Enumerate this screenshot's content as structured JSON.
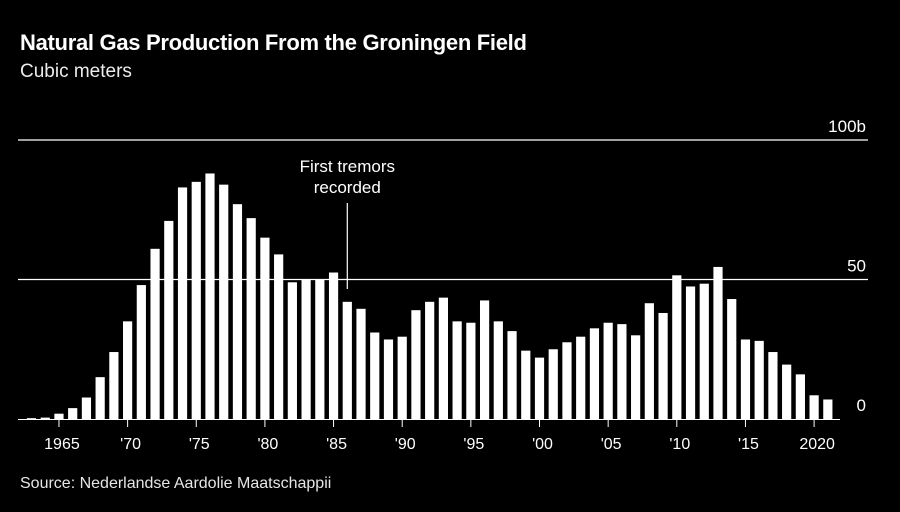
{
  "header": {
    "title": "Natural Gas Production From the Groningen Field",
    "subtitle": "Cubic meters"
  },
  "footer": {
    "source": "Source: Nederlandse Aardolie Maatschappii"
  },
  "colors": {
    "background": "#000000",
    "bars": "#ffffff",
    "gridlines": "#ffffff",
    "text": "#ffffff"
  },
  "chart_data": {
    "type": "bar",
    "title": "Natural Gas Production From the Groningen Field",
    "subtitle": "Cubic meters",
    "xlabel": "",
    "ylabel": "",
    "ylim": [
      0,
      100
    ],
    "grid": true,
    "legend": "none",
    "y_ticks": [
      {
        "value": 0,
        "label": "0"
      },
      {
        "value": 50,
        "label": "50"
      },
      {
        "value": 100,
        "label": "100b"
      }
    ],
    "x_ticks": [
      {
        "year": 1965,
        "label": "1965"
      },
      {
        "year": 1970,
        "label": "'70"
      },
      {
        "year": 1975,
        "label": "'75"
      },
      {
        "year": 1980,
        "label": "'80"
      },
      {
        "year": 1985,
        "label": "'85"
      },
      {
        "year": 1990,
        "label": "'90"
      },
      {
        "year": 1995,
        "label": "'95"
      },
      {
        "year": 2000,
        "label": "'00"
      },
      {
        "year": 2005,
        "label": "'05"
      },
      {
        "year": 2010,
        "label": "'10"
      },
      {
        "year": 2015,
        "label": "'15"
      },
      {
        "year": 2020,
        "label": "2020"
      }
    ],
    "annotation": {
      "year": 1986,
      "lines": [
        "First tremors",
        "recorded"
      ]
    },
    "categories": [
      1963,
      1964,
      1965,
      1966,
      1967,
      1968,
      1969,
      1970,
      1971,
      1972,
      1973,
      1974,
      1975,
      1976,
      1977,
      1978,
      1979,
      1980,
      1981,
      1982,
      1983,
      1984,
      1985,
      1986,
      1987,
      1988,
      1989,
      1990,
      1991,
      1992,
      1993,
      1994,
      1995,
      1996,
      1997,
      1998,
      1999,
      2000,
      2001,
      2002,
      2003,
      2004,
      2005,
      2006,
      2007,
      2008,
      2009,
      2010,
      2011,
      2012,
      2013,
      2014,
      2015,
      2016,
      2017,
      2018,
      2019,
      2020,
      2021
    ],
    "values": [
      0.3,
      0.5,
      1.9,
      3.9,
      7.7,
      15,
      24,
      35,
      48,
      61,
      71,
      83,
      85,
      88,
      84,
      77,
      72,
      65,
      59,
      49,
      50,
      50,
      52.5,
      42,
      39.5,
      31,
      28.5,
      29.5,
      39,
      42,
      43.5,
      35,
      34.5,
      42.5,
      35,
      31.5,
      24.5,
      22,
      25,
      27.5,
      29.5,
      32.5,
      34.5,
      34,
      30,
      41.5,
      38,
      51.5,
      47.5,
      48.5,
      54.5,
      43,
      28.5,
      28,
      24,
      19.5,
      16,
      8.5,
      7
    ]
  }
}
